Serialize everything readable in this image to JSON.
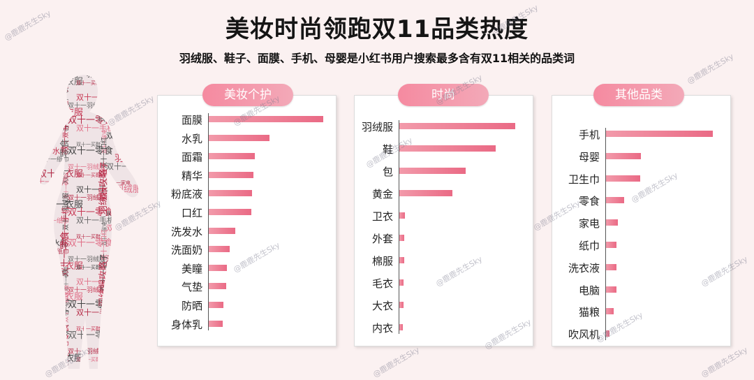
{
  "title": "美妆时尚领跑双11品类热度",
  "subtitle": "羽绒服、鞋子、面膜、手机、母婴是小红书用户搜索最多含有双11相关的品类词",
  "watermark": "@鹿鹿先生Sky",
  "silhouette_words": [
    "双十一面膜",
    "双十一羽绒服",
    "双十一鞋子",
    "双十一衣服",
    "双十一买鞋",
    "双十一口红",
    "双十一水乳",
    "双十一零食",
    "双十一家电",
    "双十一纸巾",
    "双十一手机",
    "羽绒服攻略"
  ],
  "colors": {
    "bar_start": "#f29aaa",
    "bar_end": "#ea6a85",
    "pill": "#f58aa0",
    "background": "#fbf1f1"
  },
  "chart_data": [
    {
      "type": "bar",
      "orientation": "horizontal",
      "title": "美妆个护",
      "categories": [
        "面膜",
        "水乳",
        "面霜",
        "精华",
        "粉底液",
        "口红",
        "洗发水",
        "洗面奶",
        "美瞳",
        "气垫",
        "防晒",
        "身体乳"
      ],
      "values": [
        100,
        53,
        40,
        39,
        38,
        37,
        23,
        18,
        16,
        15,
        13,
        12
      ]
    },
    {
      "type": "bar",
      "orientation": "horizontal",
      "title": "时尚",
      "categories": [
        "羽绒服",
        "鞋",
        "包",
        "黄金",
        "卫衣",
        "外套",
        "棉服",
        "毛衣",
        "大衣",
        "内衣"
      ],
      "values": [
        100,
        83,
        57,
        46,
        5,
        4,
        4,
        3.5,
        3.5,
        3
      ]
    },
    {
      "type": "bar",
      "orientation": "horizontal",
      "title": "其他品类",
      "categories": [
        "手机",
        "母婴",
        "卫生巾",
        "零食",
        "家电",
        "纸巾",
        "洗衣液",
        "电脑",
        "猫粮",
        "吹风机"
      ],
      "values": [
        100,
        33,
        32,
        17,
        11,
        10,
        10,
        10,
        7,
        3
      ]
    }
  ]
}
